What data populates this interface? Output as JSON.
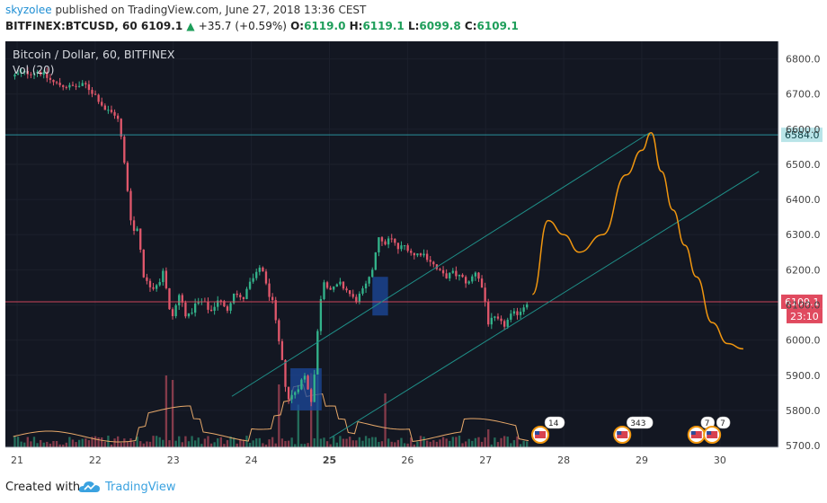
{
  "header": {
    "author": "skyzolee",
    "published_text": " published on TradingView.com, June 27, 2018 13:36 CEST",
    "symbol": "BITFINEX:BTCUSD, 60",
    "last": "6109.1",
    "change": "+35.7 (+0.59%)",
    "o_label": "O:",
    "o": "6119.0",
    "h_label": "H:",
    "h": "6119.1",
    "l_label": "L:",
    "l": "6099.8",
    "c_label": "C:",
    "c": "6109.1"
  },
  "footer": {
    "created_with": "Created with",
    "brand": "TradingView"
  },
  "chart_data": {
    "type": "candlestick",
    "title": "Bitcoin / Dollar, 60, BITFINEX",
    "indicator_label": "Vol (20)",
    "x_ticks": [
      "21",
      "22",
      "23",
      "24",
      "25",
      "26",
      "27",
      "28",
      "29",
      "30"
    ],
    "y_ticks": [
      "6800.0",
      "6700.0",
      "6600.0",
      "6500.0",
      "6400.0",
      "6300.0",
      "6200.0",
      "6100.0",
      "6000.0",
      "5900.0",
      "5800.0",
      "5700.0"
    ],
    "ylim": [
      5695,
      6850
    ],
    "xlim": [
      20.85,
      30.75
    ],
    "price_path": [
      [
        20.95,
        6750
      ],
      [
        21.1,
        6760
      ],
      [
        21.3,
        6765
      ],
      [
        21.5,
        6730
      ],
      [
        21.7,
        6720
      ],
      [
        21.9,
        6725
      ],
      [
        22.05,
        6690
      ],
      [
        22.15,
        6655
      ],
      [
        22.3,
        6640
      ],
      [
        22.35,
        6580
      ],
      [
        22.4,
        6490
      ],
      [
        22.45,
        6400
      ],
      [
        22.5,
        6300
      ],
      [
        22.55,
        6330
      ],
      [
        22.6,
        6260
      ],
      [
        22.65,
        6170
      ],
      [
        22.75,
        6150
      ],
      [
        22.85,
        6170
      ],
      [
        22.9,
        6210
      ],
      [
        22.95,
        6100
      ],
      [
        23.0,
        6060
      ],
      [
        23.1,
        6130
      ],
      [
        23.2,
        6060
      ],
      [
        23.3,
        6100
      ],
      [
        23.4,
        6110
      ],
      [
        23.5,
        6080
      ],
      [
        23.6,
        6120
      ],
      [
        23.7,
        6080
      ],
      [
        23.8,
        6140
      ],
      [
        23.9,
        6110
      ],
      [
        24.0,
        6160
      ],
      [
        24.1,
        6190
      ],
      [
        24.15,
        6220
      ],
      [
        24.2,
        6160
      ],
      [
        24.3,
        6100
      ],
      [
        24.35,
        6020
      ],
      [
        24.4,
        5960
      ],
      [
        24.45,
        5880
      ],
      [
        24.5,
        5830
      ],
      [
        24.6,
        5860
      ],
      [
        24.7,
        5900
      ],
      [
        24.75,
        5860
      ],
      [
        24.8,
        5820
      ],
      [
        24.85,
        5970
      ],
      [
        24.9,
        6110
      ],
      [
        24.95,
        6170
      ],
      [
        25.05,
        6140
      ],
      [
        25.15,
        6160
      ],
      [
        25.25,
        6140
      ],
      [
        25.35,
        6110
      ],
      [
        25.45,
        6140
      ],
      [
        25.55,
        6180
      ],
      [
        25.6,
        6240
      ],
      [
        25.65,
        6300
      ],
      [
        25.7,
        6270
      ],
      [
        25.8,
        6290
      ],
      [
        25.9,
        6260
      ],
      [
        26.0,
        6270
      ],
      [
        26.1,
        6240
      ],
      [
        26.2,
        6250
      ],
      [
        26.3,
        6230
      ],
      [
        26.4,
        6200
      ],
      [
        26.5,
        6180
      ],
      [
        26.6,
        6190
      ],
      [
        26.7,
        6180
      ],
      [
        26.8,
        6160
      ],
      [
        26.9,
        6200
      ],
      [
        27.0,
        6130
      ],
      [
        27.05,
        6050
      ],
      [
        27.15,
        6060
      ],
      [
        27.25,
        6040
      ],
      [
        27.35,
        6070
      ],
      [
        27.45,
        6080
      ],
      [
        27.55,
        6109
      ]
    ],
    "volume_spikes": [
      [
        22.9,
        160
      ],
      [
        23.0,
        150
      ],
      [
        24.35,
        140
      ],
      [
        24.6,
        95
      ],
      [
        24.75,
        165
      ],
      [
        24.85,
        170
      ],
      [
        25.7,
        120
      ],
      [
        27.05,
        40
      ]
    ],
    "horizontal_levels": [
      {
        "price": 6584.0,
        "label": "6584.0",
        "color": "#2c9ea8"
      },
      {
        "price": 6109.1,
        "label": "6109.1",
        "color": "#e04a5f"
      }
    ],
    "countdown_label": "23:10",
    "channel_lines": [
      {
        "points": [
          [
            23.75,
            5840
          ],
          [
            29.1,
            6590
          ]
        ],
        "color": "#1f8f88"
      },
      {
        "points": [
          [
            25.0,
            5720
          ],
          [
            30.5,
            6480
          ]
        ],
        "color": "#1f8f88"
      }
    ],
    "projection": {
      "color": "#f0960f",
      "points": [
        [
          27.6,
          6130
        ],
        [
          27.8,
          6340
        ],
        [
          28.0,
          6300
        ],
        [
          28.2,
          6250
        ],
        [
          28.5,
          6300
        ],
        [
          28.8,
          6470
        ],
        [
          29.0,
          6540
        ],
        [
          29.12,
          6590
        ],
        [
          29.25,
          6480
        ],
        [
          29.4,
          6370
        ],
        [
          29.55,
          6270
        ],
        [
          29.7,
          6180
        ],
        [
          29.9,
          6050
        ],
        [
          30.1,
          5990
        ],
        [
          30.3,
          5975
        ]
      ]
    },
    "highlight_boxes": [
      {
        "x0": 24.5,
        "x1": 24.9,
        "y0": 5800,
        "y1": 5920,
        "color": "#1c4a9e"
      },
      {
        "x0": 25.55,
        "x1": 25.75,
        "y0": 6070,
        "y1": 6180,
        "color": "#1c4a9e"
      }
    ],
    "event_badges": [
      {
        "x": 27.7,
        "count": "14"
      },
      {
        "x": 28.75,
        "count": "343"
      },
      {
        "x": 29.7,
        "count": "7"
      },
      {
        "x": 29.9,
        "count": "7"
      }
    ],
    "colors": {
      "background": "#131722",
      "axis_bg": "#ffffff",
      "up": "#33b38b",
      "down": "#e0576b",
      "grid": "#1c202c",
      "volume_ma": "#e8a96a"
    }
  }
}
